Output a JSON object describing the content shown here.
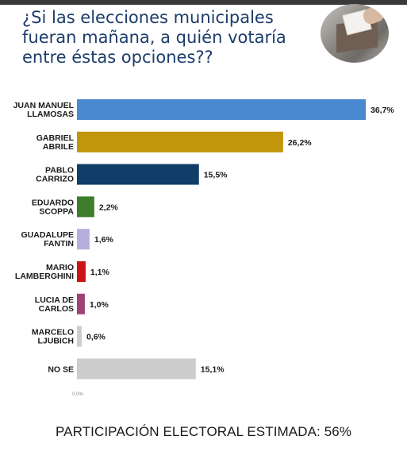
{
  "header": {
    "title_lines": [
      "¿Si las elecciones municipales",
      "fueran mañana, a quién votaría",
      "entre éstas opciones??"
    ]
  },
  "chart_data": {
    "type": "bar",
    "orientation": "horizontal",
    "categories": [
      [
        "JUAN MANUEL",
        "LLAMOSAS"
      ],
      [
        "GABRIEL",
        "ABRILE"
      ],
      [
        "PABLO",
        "CARRIZO"
      ],
      [
        "EDUARDO",
        "SCOPPA"
      ],
      [
        "GUADALUPE",
        "FANTIN"
      ],
      [
        "MARIO",
        "LAMBERGHINI"
      ],
      [
        "LUCIA DE",
        "CARLOS"
      ],
      [
        "MARCELO",
        "LJUBICH"
      ],
      [
        "NO SE"
      ]
    ],
    "values": [
      36.7,
      26.2,
      15.5,
      2.2,
      1.6,
      1.1,
      1.0,
      0.6,
      15.1
    ],
    "value_labels": [
      "36,7%",
      "26,2%",
      "15,5%",
      "2,2%",
      "1,6%",
      "1,1%",
      "1,0%",
      "0,6%",
      "15,1%"
    ],
    "colors": [
      "#4a89d0",
      "#c2950b",
      "#103e68",
      "#3f7c2b",
      "#b7aedb",
      "#cc1414",
      "#9e4374",
      "#cdcdcd",
      "#cdcdcd"
    ],
    "axis_tick_label": "0,0%",
    "xlim": [
      0,
      36.7
    ],
    "grid": false,
    "legend": "none"
  },
  "footer": {
    "text": "PARTICIPACIÓN ELECTORAL ESTIMADA: 56%"
  }
}
